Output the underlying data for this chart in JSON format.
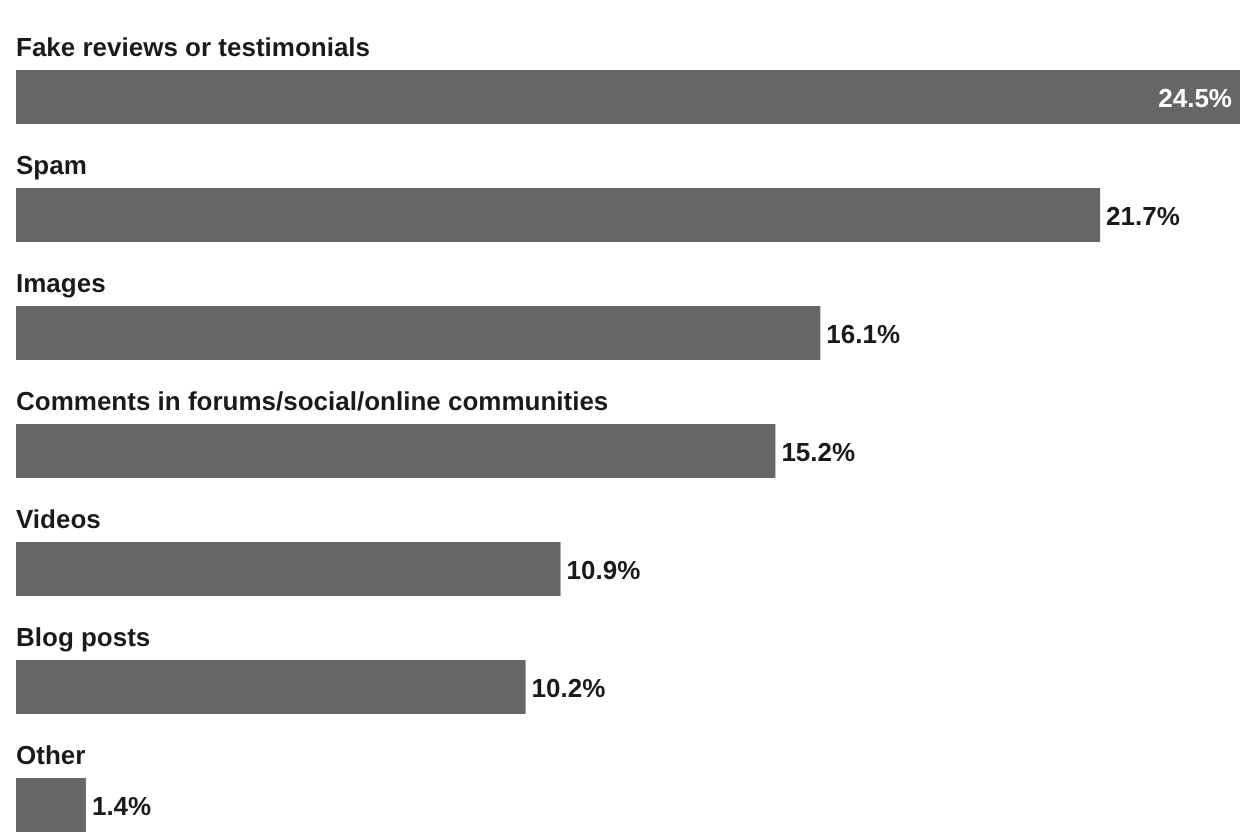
{
  "chart_data": {
    "type": "bar",
    "orientation": "horizontal",
    "categories": [
      "Fake reviews or testimonials",
      "Spam",
      "Images",
      "Comments in forums/social/online communities",
      "Videos",
      "Blog posts",
      "Other"
    ],
    "values": [
      24.5,
      21.7,
      16.1,
      15.2,
      10.9,
      10.2,
      1.4
    ],
    "value_labels": [
      "24.5%",
      "21.7%",
      "16.1%",
      "15.2%",
      "10.9%",
      "10.2%",
      "1.4%"
    ],
    "color": "#666666"
  }
}
